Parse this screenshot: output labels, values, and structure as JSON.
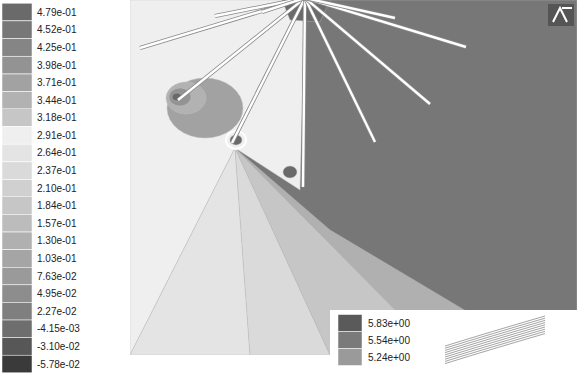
{
  "chart_data": {
    "type": "contour",
    "colorbar": {
      "range": [
        -0.0578,
        0.479
      ],
      "ticks": [
        {
          "value": 0.479,
          "label": "4.79e-01"
        },
        {
          "value": 0.452,
          "label": "4.52e-01"
        },
        {
          "value": 0.425,
          "label": "4.25e-01"
        },
        {
          "value": 0.398,
          "label": "3.98e-01"
        },
        {
          "value": 0.371,
          "label": "3.71e-01"
        },
        {
          "value": 0.344,
          "label": "3.44e-01"
        },
        {
          "value": 0.318,
          "label": "3.18e-01"
        },
        {
          "value": 0.291,
          "label": "2.91e-01"
        },
        {
          "value": 0.264,
          "label": "2.64e-01"
        },
        {
          "value": 0.237,
          "label": "2.37e-01"
        },
        {
          "value": 0.21,
          "label": "2.10e-01"
        },
        {
          "value": 0.184,
          "label": "1.84e-01"
        },
        {
          "value": 0.157,
          "label": "1.57e-01"
        },
        {
          "value": 0.13,
          "label": "1.30e-01"
        },
        {
          "value": 0.103,
          "label": "1.03e-01"
        },
        {
          "value": 0.0763,
          "label": "7.63e-02"
        },
        {
          "value": 0.0495,
          "label": "4.95e-02"
        },
        {
          "value": 0.0227,
          "label": "2.27e-02"
        },
        {
          "value": -0.00415,
          "label": "-4.15e-03"
        },
        {
          "value": -0.031,
          "label": "-3.10e-02"
        },
        {
          "value": -0.0578,
          "label": "-5.78e-02"
        }
      ],
      "colors": [
        "#6a6a6a",
        "#777777",
        "#858585",
        "#939393",
        "#a2a2a2",
        "#b2b2b2",
        "#c6c6c6",
        "#efefef",
        "#e4e4e4",
        "#dadada",
        "#d0d0d0",
        "#c6c6c6",
        "#bcbcbc",
        "#b0b0b0",
        "#a5a5a5",
        "#9a9a9a",
        "#8d8d8d",
        "#7f7f7f",
        "#6e6e6e",
        "#575757",
        "#3a3a3a"
      ]
    },
    "zones": [
      0.452,
      0.291,
      0.264,
      0.237,
      0.184,
      0.13,
      0.371,
      0.344,
      0.398,
      0.479,
      0.479,
      0.479,
      0.479
    ],
    "inset_colorbar": {
      "ticks": [
        {
          "value": 5.83,
          "label": "5.83e+00"
        },
        {
          "value": 5.54,
          "label": "5.54e+00"
        },
        {
          "value": 5.24,
          "label": "5.24e+00"
        }
      ],
      "colors": [
        "#5a5a5a",
        "#7a7a7a",
        "#9a9a9a"
      ]
    }
  }
}
